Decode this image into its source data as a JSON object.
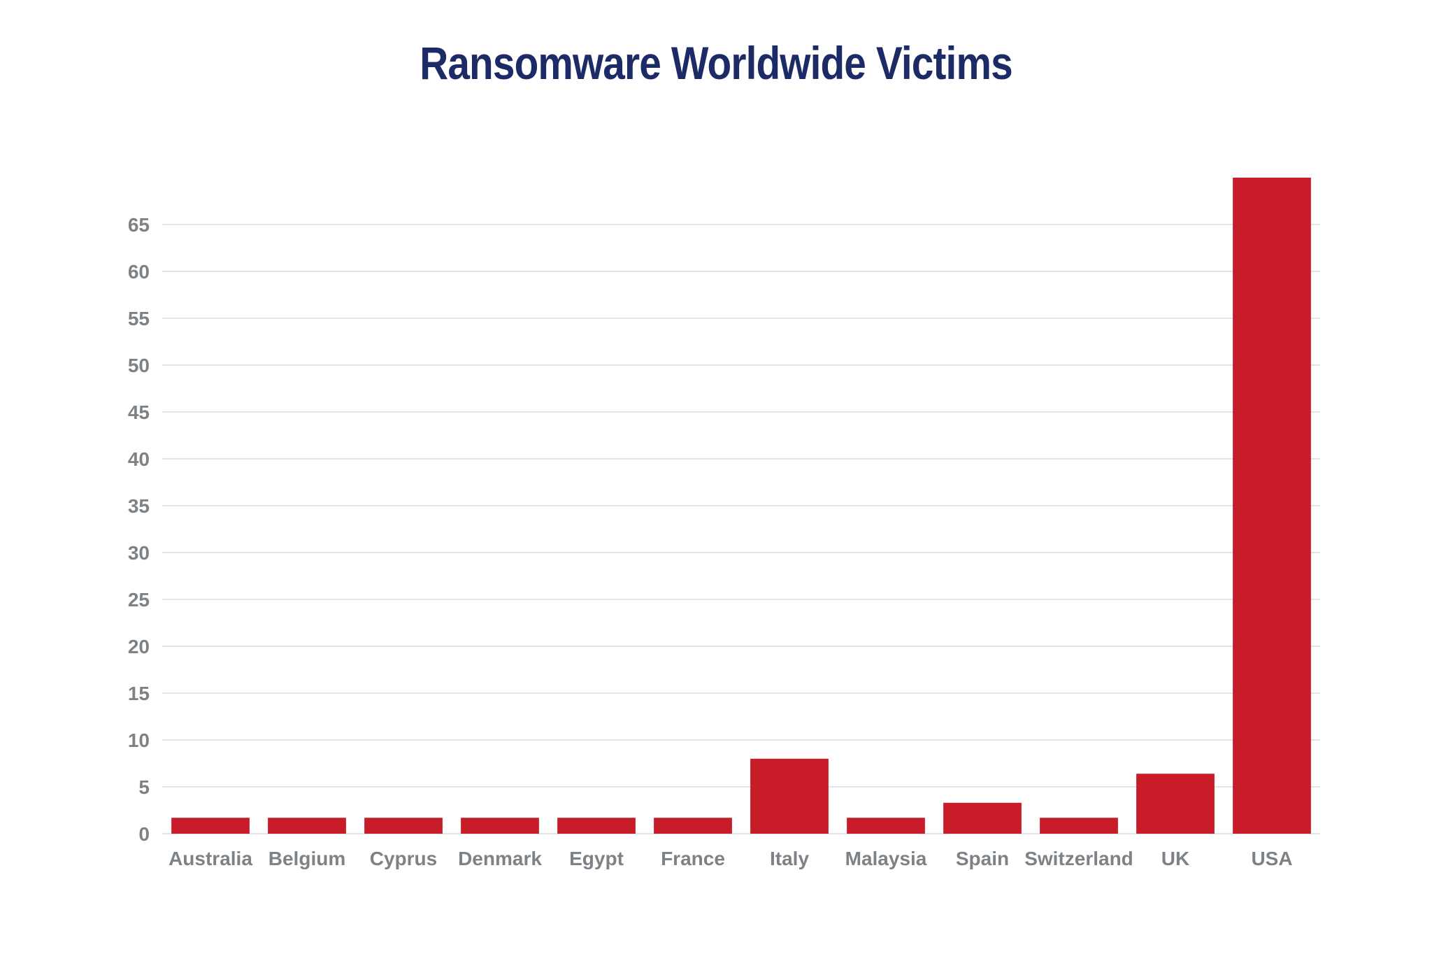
{
  "chart_data": {
    "type": "bar",
    "title": "Ransomware Worldwide Victims",
    "xlabel": "",
    "ylabel": "",
    "categories": [
      "Australia",
      "Belgium",
      "Cyprus",
      "Denmark",
      "Egypt",
      "France",
      "Italy",
      "Malaysia",
      "Spain",
      "Switzerland",
      "UK",
      "USA"
    ],
    "values": [
      1.7,
      1.7,
      1.7,
      1.7,
      1.7,
      1.7,
      8,
      1.7,
      3.3,
      1.7,
      6.4,
      70
    ],
    "ylim": [
      0,
      70
    ],
    "yticks": [
      0,
      5,
      10,
      15,
      20,
      25,
      30,
      35,
      40,
      45,
      50,
      55,
      60,
      65
    ],
    "grid": true,
    "legend": "none",
    "colors": {
      "bar": "#c81d28",
      "title": "#1c2a66",
      "tick_label": "#7d8287",
      "grid": "#dde6ee"
    }
  }
}
